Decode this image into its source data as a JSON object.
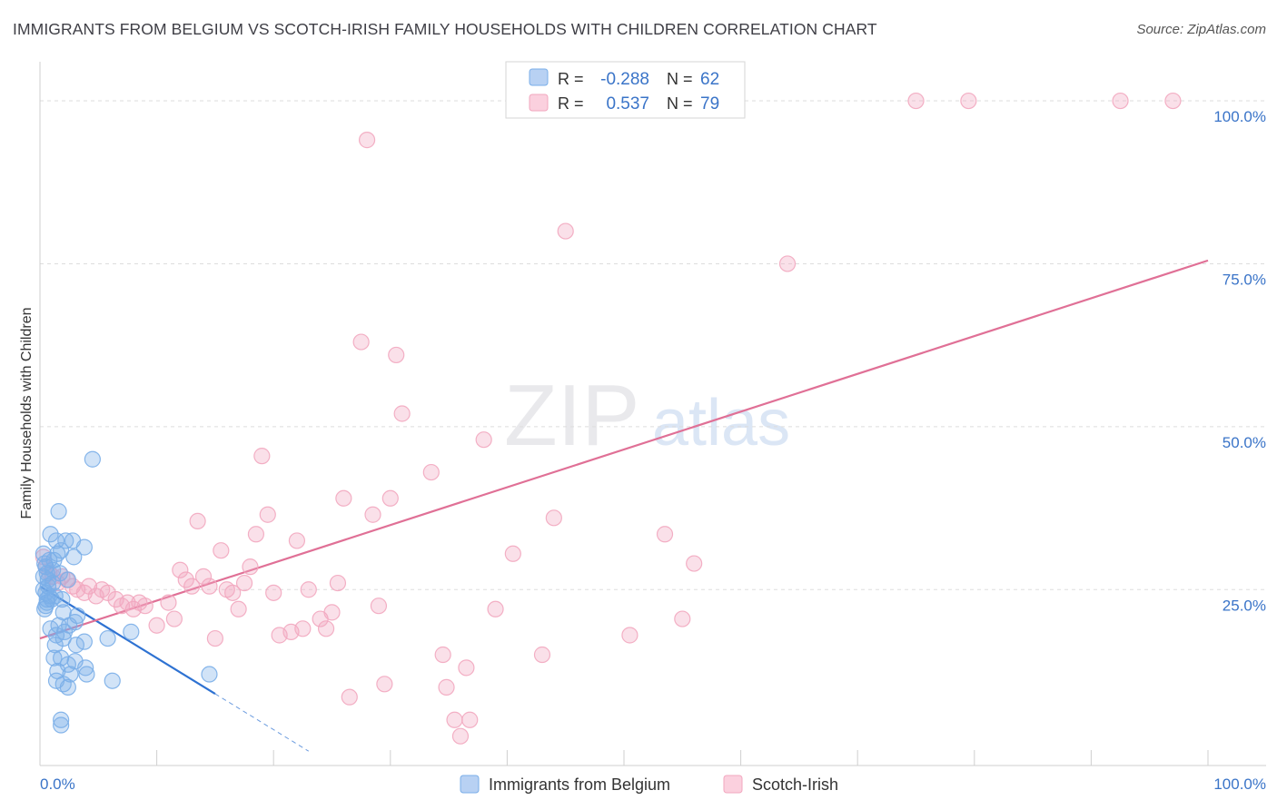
{
  "header": {
    "title": "IMMIGRANTS FROM BELGIUM VS SCOTCH-IRISH FAMILY HOUSEHOLDS WITH CHILDREN CORRELATION CHART",
    "source": "Source: ZipAtlas.com"
  },
  "watermark": {
    "zip": "ZIP",
    "atlas": "atlas"
  },
  "colors": {
    "blue": "#7aaee8",
    "blue_line": "#2e72d2",
    "pink": "#f2a7bf",
    "pink_line": "#e07096",
    "value_text": "#3a74c8",
    "grid": "#dddddd"
  },
  "chart_data": {
    "type": "scatter",
    "title": "IMMIGRANTS FROM BELGIUM VS SCOTCH-IRISH FAMILY HOUSEHOLDS WITH CHILDREN CORRELATION CHART",
    "xlabel": "",
    "ylabel": "Family Households with Children",
    "xlim": [
      0,
      100
    ],
    "ylim": [
      -2,
      106
    ],
    "x_tick_labels": [
      "0.0%",
      "100.0%"
    ],
    "y_ticks": [
      25,
      50,
      75,
      100
    ],
    "y_tick_labels": [
      "25.0%",
      "50.0%",
      "75.0%",
      "100.0%"
    ],
    "legend_stats": [
      {
        "r_label": "R =",
        "r_value": "-0.288",
        "n_label": "N =",
        "n_value": "62"
      },
      {
        "r_label": "R =",
        "r_value": "0.537",
        "n_label": "N =",
        "n_value": "79"
      }
    ],
    "series": [
      {
        "name": "Immigrants from Belgium",
        "trend": {
          "x0": 0,
          "y0": 25.5,
          "x1": 15,
          "y1": 9.0,
          "dash_x1": 23,
          "dash_y1": 0.2
        },
        "points": [
          [
            0.3,
            30.5
          ],
          [
            0.4,
            29.0
          ],
          [
            0.5,
            28.5
          ],
          [
            0.6,
            27.5
          ],
          [
            0.7,
            26.5
          ],
          [
            0.3,
            25.0
          ],
          [
            0.5,
            24.5
          ],
          [
            0.8,
            24.0
          ],
          [
            1.0,
            23.5
          ],
          [
            0.6,
            23.0
          ],
          [
            0.4,
            22.0
          ],
          [
            1.2,
            29.5
          ],
          [
            1.5,
            30.5
          ],
          [
            1.8,
            31.0
          ],
          [
            0.9,
            33.5
          ],
          [
            1.4,
            32.5
          ],
          [
            2.2,
            32.5
          ],
          [
            2.8,
            32.5
          ],
          [
            3.8,
            31.5
          ],
          [
            2.9,
            30.0
          ],
          [
            1.1,
            28.0
          ],
          [
            1.7,
            27.5
          ],
          [
            2.4,
            26.5
          ],
          [
            0.7,
            25.5
          ],
          [
            1.3,
            24.0
          ],
          [
            1.9,
            23.5
          ],
          [
            0.5,
            22.5
          ],
          [
            2.0,
            21.5
          ],
          [
            3.2,
            21.0
          ],
          [
            1.6,
            19.5
          ],
          [
            2.5,
            19.5
          ],
          [
            3.0,
            20.0
          ],
          [
            0.9,
            19.0
          ],
          [
            1.4,
            18.0
          ],
          [
            2.1,
            18.5
          ],
          [
            2.0,
            17.5
          ],
          [
            1.3,
            16.5
          ],
          [
            3.1,
            16.5
          ],
          [
            3.8,
            17.0
          ],
          [
            5.8,
            17.5
          ],
          [
            7.8,
            18.5
          ],
          [
            1.2,
            14.5
          ],
          [
            1.8,
            14.5
          ],
          [
            2.4,
            13.5
          ],
          [
            3.0,
            14.0
          ],
          [
            1.5,
            12.5
          ],
          [
            2.6,
            12.0
          ],
          [
            3.9,
            13.0
          ],
          [
            1.4,
            11.0
          ],
          [
            2.0,
            10.5
          ],
          [
            2.4,
            10.0
          ],
          [
            4.0,
            12.0
          ],
          [
            6.2,
            11.0
          ],
          [
            14.5,
            12.0
          ],
          [
            0.3,
            27.0
          ],
          [
            0.8,
            29.5
          ],
          [
            1.6,
            37.0
          ],
          [
            4.5,
            45.0
          ],
          [
            1.8,
            5.0
          ],
          [
            1.8,
            4.2
          ],
          [
            0.6,
            23.5
          ],
          [
            1.1,
            26.0
          ]
        ]
      },
      {
        "name": "Scotch-Irish",
        "trend": {
          "x0": 0,
          "y0": 17.5,
          "x1": 100,
          "y1": 75.5
        },
        "points": [
          [
            0.3,
            30.0
          ],
          [
            0.5,
            28.5
          ],
          [
            0.8,
            27.5
          ],
          [
            1.1,
            27.0
          ],
          [
            1.5,
            26.0
          ],
          [
            1.9,
            27.0
          ],
          [
            2.3,
            26.5
          ],
          [
            2.8,
            25.5
          ],
          [
            3.2,
            25.0
          ],
          [
            3.8,
            24.5
          ],
          [
            4.2,
            25.5
          ],
          [
            4.8,
            24.0
          ],
          [
            5.3,
            25.0
          ],
          [
            5.8,
            24.5
          ],
          [
            6.5,
            23.5
          ],
          [
            7.0,
            22.5
          ],
          [
            7.5,
            23.0
          ],
          [
            8.0,
            22.0
          ],
          [
            8.5,
            23.0
          ],
          [
            9.0,
            22.5
          ],
          [
            10.0,
            19.5
          ],
          [
            11.0,
            23.0
          ],
          [
            11.5,
            20.5
          ],
          [
            12.0,
            28.0
          ],
          [
            12.5,
            26.5
          ],
          [
            13.0,
            25.5
          ],
          [
            13.5,
            35.5
          ],
          [
            14.0,
            27.0
          ],
          [
            14.5,
            25.5
          ],
          [
            15.0,
            17.5
          ],
          [
            15.5,
            31.0
          ],
          [
            16.0,
            25.0
          ],
          [
            16.5,
            24.5
          ],
          [
            17.0,
            22.0
          ],
          [
            17.5,
            26.0
          ],
          [
            18.0,
            28.5
          ],
          [
            18.5,
            33.5
          ],
          [
            19.0,
            45.5
          ],
          [
            19.5,
            36.5
          ],
          [
            20.0,
            24.5
          ],
          [
            20.5,
            18.0
          ],
          [
            21.5,
            18.5
          ],
          [
            22.0,
            32.5
          ],
          [
            22.5,
            19.0
          ],
          [
            23.0,
            25.0
          ],
          [
            24.0,
            20.5
          ],
          [
            24.5,
            19.0
          ],
          [
            25.0,
            21.5
          ],
          [
            25.5,
            26.0
          ],
          [
            26.0,
            39.0
          ],
          [
            26.5,
            8.5
          ],
          [
            27.5,
            63.0
          ],
          [
            28.0,
            94.0
          ],
          [
            28.5,
            36.5
          ],
          [
            29.0,
            22.5
          ],
          [
            29.5,
            10.5
          ],
          [
            30.0,
            39.0
          ],
          [
            30.5,
            61.0
          ],
          [
            31.0,
            52.0
          ],
          [
            33.5,
            43.0
          ],
          [
            34.5,
            15.0
          ],
          [
            34.8,
            10.0
          ],
          [
            35.5,
            5.0
          ],
          [
            36.0,
            2.5
          ],
          [
            36.5,
            13.0
          ],
          [
            36.8,
            5.0
          ],
          [
            38.0,
            48.0
          ],
          [
            39.0,
            22.0
          ],
          [
            40.5,
            30.5
          ],
          [
            43.0,
            15.0
          ],
          [
            44.0,
            36.0
          ],
          [
            45.0,
            80.0
          ],
          [
            50.5,
            18.0
          ],
          [
            53.5,
            33.5
          ],
          [
            55.0,
            20.5
          ],
          [
            56.0,
            29.0
          ],
          [
            64.0,
            75.0
          ],
          [
            75.0,
            100.0
          ],
          [
            79.5,
            100.0
          ]
        ]
      }
    ],
    "extra_points": [
      [
        92.5,
        100.0
      ],
      [
        97.0,
        100.0
      ]
    ]
  }
}
